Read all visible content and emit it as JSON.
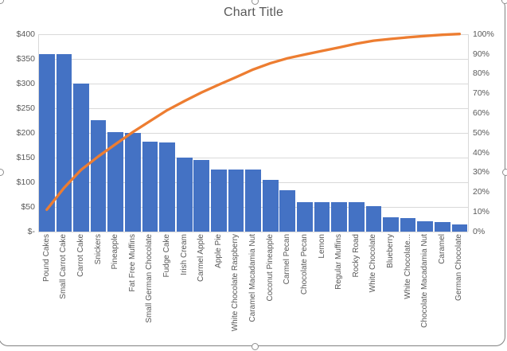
{
  "chart_title": "Chart Title",
  "chart_data": {
    "type": "bar",
    "subtype": "pareto (clustered column + cumulative percentage line)",
    "title": "Chart Title",
    "categories": [
      "Pound Cakes",
      "Small Carrot Cake",
      "Carrot Cake",
      "Snickers",
      "Pineapple",
      "Fat Free Muffins",
      "Small German Chocolate",
      "Fudge Cake",
      "Irish Cream",
      "Carmel Apple",
      "Apple Pie",
      "White Chocolate Raspberry",
      "Caramel Macadamia Nut",
      "Coconut Pineapple",
      "Carmel Pecan",
      "Chocolate Pecan",
      "Lemon",
      "Regular Muffins",
      "Rocky Road",
      "White Chocolate",
      "Blueberry",
      "White Chocolate...",
      "Chocolate Macadamia Nut",
      "Caramel",
      "German Chocolate"
    ],
    "series": [
      {
        "kind": "bar",
        "values_usd": [
          360,
          360,
          300,
          225,
          202,
          200,
          182,
          180,
          150,
          145,
          126,
          126,
          126,
          105,
          84,
          60,
          60,
          60,
          60,
          52,
          28,
          27,
          21,
          19,
          14
        ],
        "color": "#4472C4"
      },
      {
        "kind": "line",
        "cumulative_pct": [
          11.0,
          22.0,
          31.2,
          38.0,
          44.2,
          50.3,
          55.9,
          61.4,
          66.0,
          70.4,
          74.3,
          78.1,
          82.0,
          85.2,
          87.7,
          89.6,
          91.4,
          93.2,
          95.1,
          96.6,
          97.5,
          98.3,
          99.0,
          99.6,
          100.0
        ],
        "color": "#ED7D31"
      }
    ],
    "value_axis": {
      "side": "left",
      "tick_labels": [
        "$400",
        "$350",
        "$300",
        "$250",
        "$200",
        "$150",
        "$100",
        "$50",
        "$-"
      ],
      "range": [
        0,
        400
      ]
    },
    "percent_axis": {
      "side": "right",
      "tick_labels": [
        "100%",
        "90%",
        "80%",
        "70%",
        "60%",
        "50%",
        "40%",
        "30%",
        "20%",
        "10%",
        "0%"
      ],
      "range": [
        0,
        100
      ]
    },
    "grid": true,
    "legend": false,
    "colors": {
      "bar": "#4472C4",
      "line": "#ED7D31",
      "gridline": "#d9d9d9",
      "text": "#595959"
    }
  }
}
